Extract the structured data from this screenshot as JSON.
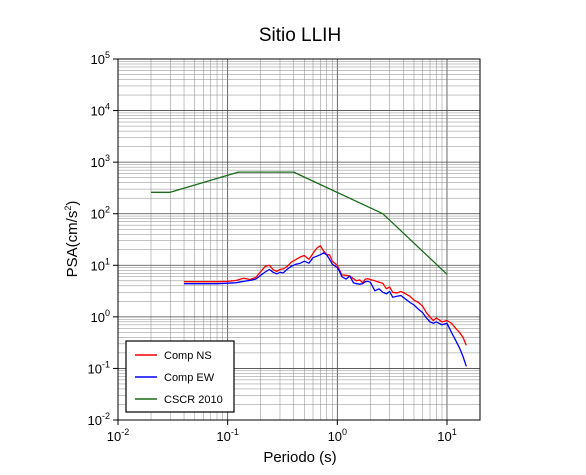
{
  "chart_data": {
    "type": "line",
    "title": "Sitio LLIH",
    "xlabel": "Periodo (s)",
    "ylabel": "PSA(cm/s",
    "ylabel_sup": "2",
    "ylabel_suffix": ")",
    "x_scale": "log",
    "y_scale": "log",
    "xlim": [
      0.01,
      20
    ],
    "ylim": [
      0.01,
      100000
    ],
    "grid": true,
    "legend_position": "bottom-left",
    "x_ticks": [
      {
        "base": "10",
        "exp": "-2",
        "value": 0.01
      },
      {
        "base": "10",
        "exp": "-1",
        "value": 0.1
      },
      {
        "base": "10",
        "exp": "0",
        "value": 1
      },
      {
        "base": "10",
        "exp": "1",
        "value": 10
      }
    ],
    "y_ticks": [
      {
        "base": "10",
        "exp": "-2",
        "value": 0.01
      },
      {
        "base": "10",
        "exp": "-1",
        "value": 0.1
      },
      {
        "base": "10",
        "exp": "0",
        "value": 1
      },
      {
        "base": "10",
        "exp": "1",
        "value": 10
      },
      {
        "base": "10",
        "exp": "2",
        "value": 100
      },
      {
        "base": "10",
        "exp": "3",
        "value": 1000
      },
      {
        "base": "10",
        "exp": "4",
        "value": 10000
      },
      {
        "base": "10",
        "exp": "5",
        "value": 100000
      }
    ],
    "series": [
      {
        "name": "Comp NS",
        "color": "#ff0000",
        "points": [
          [
            0.04,
            4.8
          ],
          [
            0.05,
            4.8
          ],
          [
            0.06,
            4.8
          ],
          [
            0.08,
            4.8
          ],
          [
            0.1,
            4.9
          ],
          [
            0.12,
            5.1
          ],
          [
            0.14,
            5.6
          ],
          [
            0.16,
            5.3
          ],
          [
            0.18,
            5.8
          ],
          [
            0.2,
            7.5
          ],
          [
            0.22,
            9.5
          ],
          [
            0.24,
            10
          ],
          [
            0.26,
            8.2
          ],
          [
            0.28,
            7.6
          ],
          [
            0.3,
            8.3
          ],
          [
            0.32,
            8.5
          ],
          [
            0.35,
            9.5
          ],
          [
            0.38,
            11.5
          ],
          [
            0.42,
            13
          ],
          [
            0.46,
            14.5
          ],
          [
            0.5,
            15.5
          ],
          [
            0.55,
            13
          ],
          [
            0.6,
            17
          ],
          [
            0.65,
            21.5
          ],
          [
            0.7,
            24
          ],
          [
            0.75,
            19
          ],
          [
            0.8,
            16
          ],
          [
            0.85,
            16
          ],
          [
            0.9,
            12
          ],
          [
            1.0,
            10
          ],
          [
            1.05,
            8
          ],
          [
            1.1,
            6.5
          ],
          [
            1.2,
            6.4
          ],
          [
            1.3,
            6.2
          ],
          [
            1.4,
            5.5
          ],
          [
            1.5,
            5
          ],
          [
            1.6,
            5.2
          ],
          [
            1.7,
            4.6
          ],
          [
            1.8,
            5.4
          ],
          [
            1.9,
            5.5
          ],
          [
            2.0,
            5.3
          ],
          [
            2.2,
            5
          ],
          [
            2.4,
            4.7
          ],
          [
            2.6,
            4.5
          ],
          [
            2.8,
            3.5
          ],
          [
            3.0,
            3.8
          ],
          [
            3.2,
            3
          ],
          [
            3.5,
            2.9
          ],
          [
            3.8,
            3.1
          ],
          [
            4.2,
            2.8
          ],
          [
            4.6,
            2.5
          ],
          [
            5.0,
            2.1
          ],
          [
            5.5,
            1.9
          ],
          [
            6.0,
            1.6
          ],
          [
            6.5,
            1.2
          ],
          [
            7.0,
            1.0
          ],
          [
            7.5,
            0.85
          ],
          [
            8.0,
            0.95
          ],
          [
            9.0,
            0.8
          ],
          [
            10,
            0.85
          ],
          [
            11,
            0.75
          ],
          [
            12,
            0.6
          ],
          [
            13,
            0.5
          ],
          [
            14,
            0.4
          ],
          [
            15,
            0.28
          ]
        ]
      },
      {
        "name": "Comp EW",
        "color": "#0000ff",
        "points": [
          [
            0.04,
            4.4
          ],
          [
            0.05,
            4.4
          ],
          [
            0.06,
            4.4
          ],
          [
            0.08,
            4.4
          ],
          [
            0.1,
            4.5
          ],
          [
            0.12,
            4.6
          ],
          [
            0.14,
            4.9
          ],
          [
            0.16,
            5.1
          ],
          [
            0.18,
            5.4
          ],
          [
            0.2,
            6.4
          ],
          [
            0.22,
            7.4
          ],
          [
            0.24,
            8.3
          ],
          [
            0.26,
            7.3
          ],
          [
            0.28,
            6.8
          ],
          [
            0.3,
            7.3
          ],
          [
            0.32,
            7.1
          ],
          [
            0.35,
            8.4
          ],
          [
            0.38,
            9.5
          ],
          [
            0.42,
            10.5
          ],
          [
            0.46,
            11
          ],
          [
            0.5,
            12
          ],
          [
            0.55,
            11
          ],
          [
            0.6,
            14
          ],
          [
            0.65,
            15
          ],
          [
            0.7,
            16
          ],
          [
            0.75,
            17.5
          ],
          [
            0.8,
            16
          ],
          [
            0.85,
            13
          ],
          [
            0.9,
            10.5
          ],
          [
            1.0,
            9
          ],
          [
            1.05,
            7.5
          ],
          [
            1.1,
            6
          ],
          [
            1.2,
            5.4
          ],
          [
            1.3,
            6.2
          ],
          [
            1.4,
            4.6
          ],
          [
            1.5,
            4.4
          ],
          [
            1.6,
            4.3
          ],
          [
            1.7,
            4.4
          ],
          [
            1.8,
            4.8
          ],
          [
            1.9,
            4.9
          ],
          [
            2.0,
            4.7
          ],
          [
            2.2,
            3.2
          ],
          [
            2.4,
            3.5
          ],
          [
            2.6,
            3.0
          ],
          [
            2.8,
            2.8
          ],
          [
            3.0,
            3.1
          ],
          [
            3.2,
            2.4
          ],
          [
            3.5,
            2.5
          ],
          [
            3.8,
            2.6
          ],
          [
            4.2,
            2.2
          ],
          [
            4.6,
            1.9
          ],
          [
            5.0,
            1.7
          ],
          [
            5.5,
            1.4
          ],
          [
            6.0,
            1.2
          ],
          [
            6.5,
            0.95
          ],
          [
            7.0,
            0.8
          ],
          [
            7.5,
            0.75
          ],
          [
            8.0,
            0.8
          ],
          [
            9.0,
            0.7
          ],
          [
            10,
            0.75
          ],
          [
            11,
            0.5
          ],
          [
            12,
            0.35
          ],
          [
            13,
            0.25
          ],
          [
            14,
            0.17
          ],
          [
            15,
            0.11
          ]
        ]
      },
      {
        "name": "CSCR 2010",
        "color": "#1a6b1a",
        "points": [
          [
            0.02,
            260
          ],
          [
            0.03,
            260
          ],
          [
            0.125,
            640
          ],
          [
            0.4,
            640
          ],
          [
            2.6,
            100
          ],
          [
            10,
            6.7
          ]
        ]
      }
    ]
  }
}
